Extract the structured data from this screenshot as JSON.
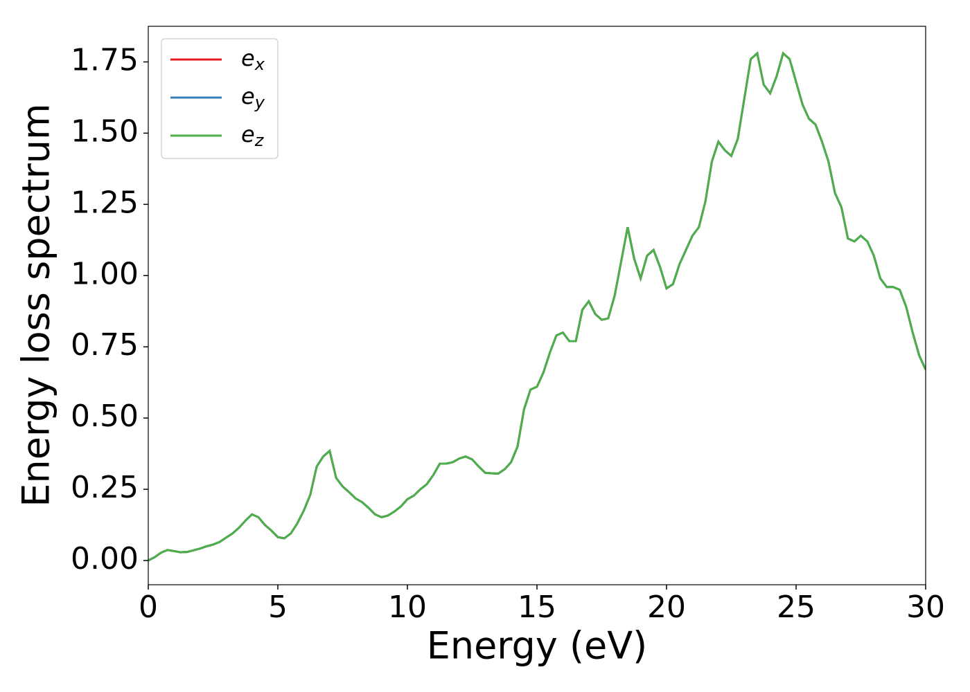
{
  "chart_data": {
    "type": "line",
    "xlabel": "Energy (eV)",
    "ylabel": "Energy loss spectrum",
    "x": [
      0,
      0.25,
      0.5,
      0.75,
      1,
      1.25,
      1.5,
      1.75,
      2,
      2.25,
      2.5,
      2.75,
      3,
      3.25,
      3.5,
      3.75,
      4,
      4.25,
      4.5,
      4.75,
      5,
      5.25,
      5.5,
      5.75,
      6,
      6.25,
      6.5,
      6.75,
      7,
      7.25,
      7.5,
      7.75,
      8,
      8.25,
      8.5,
      8.75,
      9,
      9.25,
      9.5,
      9.75,
      10,
      10.25,
      10.5,
      10.75,
      11,
      11.25,
      11.5,
      11.75,
      12,
      12.25,
      12.5,
      12.75,
      13,
      13.25,
      13.5,
      13.75,
      14,
      14.25,
      14.5,
      14.75,
      15,
      15.25,
      15.5,
      15.75,
      16,
      16.25,
      16.5,
      16.75,
      17,
      17.25,
      17.5,
      17.75,
      18,
      18.25,
      18.5,
      18.75,
      19,
      19.25,
      19.5,
      19.75,
      20,
      20.25,
      20.5,
      20.75,
      21,
      21.25,
      21.5,
      21.75,
      22,
      22.25,
      22.5,
      22.75,
      23,
      23.25,
      23.5,
      23.75,
      24,
      24.25,
      24.5,
      24.75,
      25,
      25.25,
      25.5,
      25.75,
      26,
      26.25,
      26.5,
      26.75,
      27,
      27.25,
      27.5,
      27.75,
      28,
      28.25,
      28.5,
      28.75,
      29,
      29.25,
      29.5,
      29.75,
      30
    ],
    "series": [
      {
        "name": "ex",
        "color": "#e41a1c",
        "values": [
          0,
          0.012,
          0.028,
          0.037,
          0.033,
          0.029,
          0.03,
          0.036,
          0.042,
          0.05,
          0.056,
          0.065,
          0.08,
          0.095,
          0.115,
          0.14,
          0.162,
          0.152,
          0.125,
          0.105,
          0.082,
          0.078,
          0.095,
          0.13,
          0.175,
          0.23,
          0.33,
          0.365,
          0.385,
          0.29,
          0.26,
          0.24,
          0.218,
          0.205,
          0.185,
          0.162,
          0.152,
          0.158,
          0.172,
          0.19,
          0.215,
          0.228,
          0.25,
          0.268,
          0.3,
          0.34,
          0.34,
          0.345,
          0.358,
          0.365,
          0.355,
          0.33,
          0.308,
          0.306,
          0.305,
          0.32,
          0.345,
          0.4,
          0.53,
          0.6,
          0.61,
          0.66,
          0.73,
          0.79,
          0.8,
          0.77,
          0.77,
          0.88,
          0.91,
          0.865,
          0.845,
          0.85,
          0.93,
          1.05,
          1.17,
          1.06,
          0.99,
          1.07,
          1.09,
          1.03,
          0.955,
          0.97,
          1.04,
          1.09,
          1.14,
          1.17,
          1.26,
          1.4,
          1.47,
          1.44,
          1.42,
          1.48,
          1.62,
          1.76,
          1.78,
          1.67,
          1.64,
          1.7,
          1.78,
          1.76,
          1.68,
          1.6,
          1.55,
          1.53,
          1.47,
          1.4,
          1.29,
          1.24,
          1.13,
          1.12,
          1.14,
          1.12,
          1.07,
          0.99,
          0.96,
          0.96,
          0.95,
          0.89,
          0.8,
          0.72,
          0.67
        ]
      },
      {
        "name": "ey",
        "color": "#377eb8",
        "values": [
          0,
          0.012,
          0.028,
          0.037,
          0.033,
          0.029,
          0.03,
          0.036,
          0.042,
          0.05,
          0.056,
          0.065,
          0.08,
          0.095,
          0.115,
          0.14,
          0.162,
          0.152,
          0.125,
          0.105,
          0.082,
          0.078,
          0.095,
          0.13,
          0.175,
          0.23,
          0.33,
          0.365,
          0.385,
          0.29,
          0.26,
          0.24,
          0.218,
          0.205,
          0.185,
          0.162,
          0.152,
          0.158,
          0.172,
          0.19,
          0.215,
          0.228,
          0.25,
          0.268,
          0.3,
          0.34,
          0.34,
          0.345,
          0.358,
          0.365,
          0.355,
          0.33,
          0.308,
          0.306,
          0.305,
          0.32,
          0.345,
          0.4,
          0.53,
          0.6,
          0.61,
          0.66,
          0.73,
          0.79,
          0.8,
          0.77,
          0.77,
          0.88,
          0.91,
          0.865,
          0.845,
          0.85,
          0.93,
          1.05,
          1.17,
          1.06,
          0.99,
          1.07,
          1.09,
          1.03,
          0.955,
          0.97,
          1.04,
          1.09,
          1.14,
          1.17,
          1.26,
          1.4,
          1.47,
          1.44,
          1.42,
          1.48,
          1.62,
          1.76,
          1.78,
          1.67,
          1.64,
          1.7,
          1.78,
          1.76,
          1.68,
          1.6,
          1.55,
          1.53,
          1.47,
          1.4,
          1.29,
          1.24,
          1.13,
          1.12,
          1.14,
          1.12,
          1.07,
          0.99,
          0.96,
          0.96,
          0.95,
          0.89,
          0.8,
          0.72,
          0.67
        ]
      },
      {
        "name": "ez",
        "color": "#4daf4a",
        "values": [
          0,
          0.012,
          0.028,
          0.037,
          0.033,
          0.029,
          0.03,
          0.036,
          0.042,
          0.05,
          0.056,
          0.065,
          0.08,
          0.095,
          0.115,
          0.14,
          0.162,
          0.152,
          0.125,
          0.105,
          0.082,
          0.078,
          0.095,
          0.13,
          0.175,
          0.23,
          0.33,
          0.365,
          0.385,
          0.29,
          0.26,
          0.24,
          0.218,
          0.205,
          0.185,
          0.162,
          0.152,
          0.158,
          0.172,
          0.19,
          0.215,
          0.228,
          0.25,
          0.268,
          0.3,
          0.34,
          0.34,
          0.345,
          0.358,
          0.365,
          0.355,
          0.33,
          0.308,
          0.306,
          0.305,
          0.32,
          0.345,
          0.4,
          0.53,
          0.6,
          0.61,
          0.66,
          0.73,
          0.79,
          0.8,
          0.77,
          0.77,
          0.88,
          0.91,
          0.865,
          0.845,
          0.85,
          0.93,
          1.05,
          1.17,
          1.06,
          0.99,
          1.07,
          1.09,
          1.03,
          0.955,
          0.97,
          1.04,
          1.09,
          1.14,
          1.17,
          1.26,
          1.4,
          1.47,
          1.44,
          1.42,
          1.48,
          1.62,
          1.76,
          1.78,
          1.67,
          1.64,
          1.7,
          1.78,
          1.76,
          1.68,
          1.6,
          1.55,
          1.53,
          1.47,
          1.4,
          1.29,
          1.24,
          1.13,
          1.12,
          1.14,
          1.12,
          1.07,
          0.99,
          0.96,
          0.96,
          0.95,
          0.89,
          0.8,
          0.72,
          0.67
        ]
      }
    ],
    "xlim": [
      0,
      30
    ],
    "xticks": [
      0,
      5,
      10,
      15,
      20,
      25,
      30
    ],
    "ylim": [
      -0.085,
      1.875
    ],
    "yticks": [
      {
        "value": 0,
        "label": "0.00"
      },
      {
        "value": 0.25,
        "label": "0.25"
      },
      {
        "value": 0.5,
        "label": "0.50"
      },
      {
        "value": 0.75,
        "label": "0.75"
      },
      {
        "value": 1,
        "label": "1.00"
      },
      {
        "value": 1.25,
        "label": "1.25"
      },
      {
        "value": 1.5,
        "label": "1.50"
      },
      {
        "value": 1.75,
        "label": "1.75"
      }
    ],
    "grid": false,
    "legend": "upper left"
  }
}
